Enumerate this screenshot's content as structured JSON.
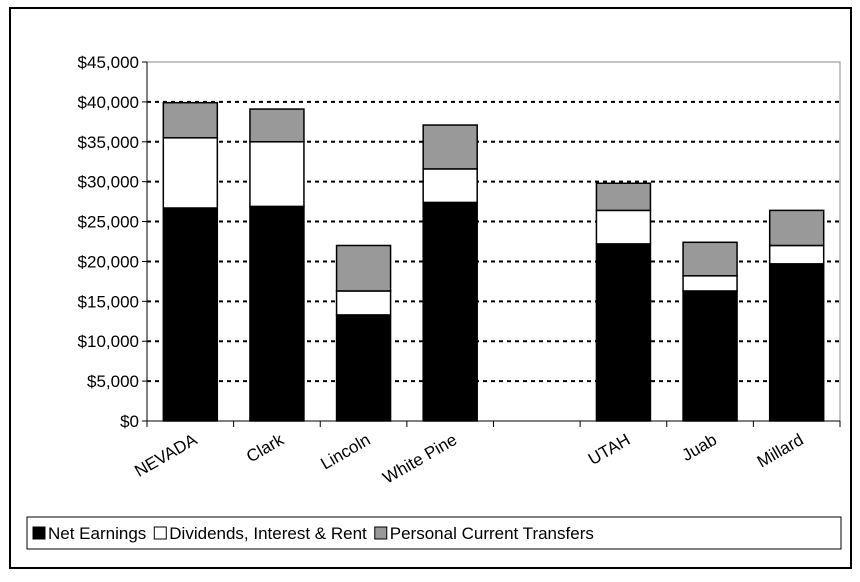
{
  "chart_data": {
    "type": "stacked-bar",
    "categories": [
      "NEVADA",
      "Clark",
      "Lincoln",
      "White Pine",
      null,
      "UTAH",
      "Juab",
      "Millard"
    ],
    "series": [
      {
        "name": "Net Earnings",
        "color": "#000000",
        "values": [
          26700,
          26900,
          13300,
          27400,
          null,
          22200,
          16300,
          19700
        ]
      },
      {
        "name": "Dividends, Interest & Rent",
        "color": "#ffffff",
        "values": [
          8800,
          8100,
          3000,
          4200,
          null,
          4200,
          1900,
          2300
        ]
      },
      {
        "name": "Personal Current Transfers",
        "color": "#999999",
        "values": [
          4400,
          4100,
          5700,
          5500,
          null,
          3400,
          4200,
          4400
        ]
      }
    ],
    "ylim": [
      0,
      45000
    ],
    "yticks": [
      {
        "value": 0,
        "label": "$0"
      },
      {
        "value": 5000,
        "label": "$5,000"
      },
      {
        "value": 10000,
        "label": "$10,000"
      },
      {
        "value": 15000,
        "label": "$15,000"
      },
      {
        "value": 20000,
        "label": "$20,000"
      },
      {
        "value": 25000,
        "label": "$25,000"
      },
      {
        "value": 30000,
        "label": "$30,000"
      },
      {
        "value": 35000,
        "label": "$35,000"
      },
      {
        "value": 40000,
        "label": "$40,000"
      },
      {
        "value": 45000,
        "label": "$45,000"
      }
    ],
    "grid": true,
    "legend": "bottom"
  }
}
